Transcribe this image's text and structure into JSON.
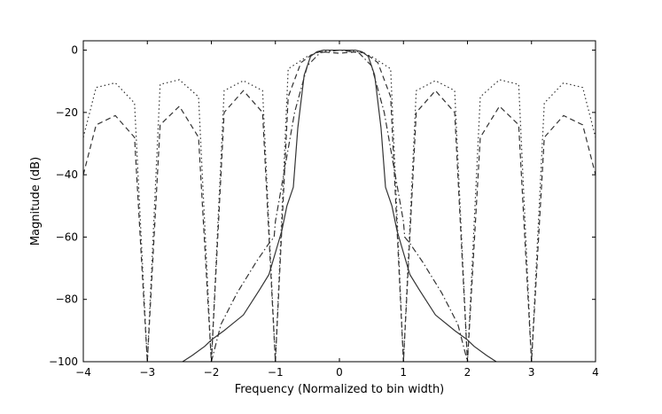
{
  "chart_data": {
    "type": "line",
    "xlabel": "Frequency (Normalized to bin width)",
    "ylabel": "Magnitude (dB)",
    "xlim": [
      -4,
      4
    ],
    "ylim": [
      -100,
      3
    ],
    "xticks": [
      -4,
      -3,
      -2,
      -1,
      0,
      1,
      2,
      3,
      4
    ],
    "xtick_labels": [
      "−4",
      "−3",
      "−2",
      "−1",
      "0",
      "1",
      "2",
      "3",
      "4"
    ],
    "yticks": [
      0,
      -20,
      -40,
      -60,
      -80,
      -100
    ],
    "ytick_labels": [
      "0",
      "−20",
      "−40",
      "−60",
      "−80",
      "−100"
    ],
    "grid": false,
    "legend": "none",
    "series": [
      {
        "style": "solid",
        "color": "#333333",
        "x": [
          -2.45,
          -2.3,
          -2.1,
          -2.0,
          -1.8,
          -1.5,
          -1.25,
          -1.1,
          -1.0,
          -0.9,
          -0.82,
          -0.72,
          -0.65,
          -0.55,
          -0.45,
          -0.35,
          -0.25,
          0.0,
          0.25,
          0.35,
          0.45,
          0.55,
          0.65,
          0.72,
          0.82,
          0.9,
          1.0,
          1.1,
          1.25,
          1.5,
          1.8,
          2.0,
          2.1,
          2.3,
          2.45
        ],
        "y": [
          -100,
          -98,
          -95,
          -93,
          -90,
          -85,
          -77,
          -72,
          -65,
          -58,
          -50,
          -44,
          -25,
          -8,
          -2,
          -0.5,
          0,
          0,
          0,
          -0.5,
          -2,
          -8,
          -25,
          -44,
          -50,
          -58,
          -65,
          -72,
          -77,
          -85,
          -90,
          -93,
          -95,
          -98,
          -100
        ]
      },
      {
        "style": "dashed",
        "color": "#333333",
        "x": [
          -4.0,
          -3.8,
          -3.5,
          -3.2,
          -3.0,
          -2.8,
          -2.5,
          -2.2,
          -2.0,
          -1.8,
          -1.5,
          -1.2,
          -1.0,
          -0.8,
          -0.6,
          -0.4,
          -0.3,
          0.0,
          0.3,
          0.4,
          0.6,
          0.8,
          1.0,
          1.2,
          1.5,
          1.8,
          2.0,
          2.2,
          2.5,
          2.8,
          3.0,
          3.2,
          3.5,
          3.8,
          4.0
        ],
        "y": [
          -40,
          -24,
          -21,
          -28,
          -100,
          -24,
          -18,
          -28,
          -100,
          -20,
          -13,
          -20,
          -100,
          -15,
          -4,
          -1,
          -0.5,
          -1,
          -0.5,
          -1,
          -4,
          -15,
          -100,
          -20,
          -13,
          -20,
          -100,
          -28,
          -18,
          -24,
          -100,
          -28,
          -21,
          -24,
          -40
        ]
      },
      {
        "style": "dotted",
        "color": "#333333",
        "x": [
          -4.0,
          -3.8,
          -3.5,
          -3.2,
          -3.0,
          -2.8,
          -2.5,
          -2.2,
          -2.0,
          -1.8,
          -1.5,
          -1.2,
          -1.0,
          -0.8,
          -0.5,
          -0.3,
          0.0,
          0.3,
          0.5,
          0.8,
          1.0,
          1.2,
          1.5,
          1.8,
          2.0,
          2.2,
          2.5,
          2.8,
          3.0,
          3.2,
          3.5,
          3.8,
          4.0
        ],
        "y": [
          -28,
          -12,
          -10.5,
          -17,
          -100,
          -11,
          -9.5,
          -15,
          -100,
          -13,
          -9.8,
          -13,
          -100,
          -6,
          -2,
          -0.5,
          0,
          -0.5,
          -2,
          -6,
          -100,
          -13,
          -9.8,
          -13,
          -100,
          -15,
          -9.5,
          -11,
          -100,
          -17,
          -10.5,
          -12,
          -28
        ]
      },
      {
        "style": "dashdot",
        "color": "#333333",
        "x": [
          -2.0,
          -1.85,
          -1.6,
          -1.3,
          -1.1,
          -1.02,
          -1.0,
          -0.7,
          -0.5,
          -0.3,
          0.0,
          0.3,
          0.5,
          0.7,
          1.0,
          1.02,
          1.1,
          1.3,
          1.6,
          1.85,
          2.0
        ],
        "y": [
          -100,
          -88,
          -78,
          -68,
          -62,
          -60,
          -55,
          -20,
          -5,
          -0.8,
          0,
          -0.8,
          -5,
          -20,
          -55,
          -60,
          -62,
          -68,
          -78,
          -88,
          -100
        ]
      }
    ]
  }
}
